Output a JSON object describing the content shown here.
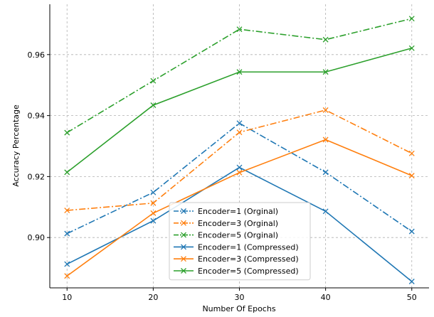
{
  "chart_data": {
    "type": "line",
    "title": "",
    "xlabel": "Number Of Epochs",
    "ylabel": "Accuracy Percentage",
    "x": [
      10,
      20,
      30,
      40,
      50
    ],
    "xticks": [
      "10",
      "20",
      "30",
      "40",
      "50"
    ],
    "yticks": [
      "0.90",
      "0.92",
      "0.94",
      "0.96"
    ],
    "xlim": [
      8,
      52
    ],
    "ylim": [
      0.8835,
      0.9765
    ],
    "grid": true,
    "legend_position": "lower-center",
    "series": [
      {
        "name": "Encoder=1 (Orginal)",
        "values": [
          0.9013,
          0.9148,
          0.9375,
          0.9214,
          0.902
        ],
        "color": "#1f77b4",
        "style": "dashdot",
        "marker": "x"
      },
      {
        "name": "Encoder=3 (Orginal)",
        "values": [
          0.9089,
          0.9113,
          0.9345,
          0.9418,
          0.9276
        ],
        "color": "#ff7f0e",
        "style": "dashdot",
        "marker": "x"
      },
      {
        "name": "Encoder=5 (Orginal)",
        "values": [
          0.9344,
          0.9514,
          0.9683,
          0.9649,
          0.9718
        ],
        "color": "#2ca02c",
        "style": "dashdot",
        "marker": "x"
      },
      {
        "name": "Encoder=1 (Compressed)",
        "values": [
          0.8913,
          0.9055,
          0.923,
          0.9086,
          0.8856
        ],
        "color": "#1f77b4",
        "style": "solid",
        "marker": "x"
      },
      {
        "name": "Encoder=3 (Compressed)",
        "values": [
          0.8874,
          0.908,
          0.9213,
          0.9321,
          0.9203
        ],
        "color": "#ff7f0e",
        "style": "solid",
        "marker": "x"
      },
      {
        "name": "Encoder=5 (Compressed)",
        "values": [
          0.9214,
          0.9434,
          0.9543,
          0.9543,
          0.9621
        ],
        "color": "#2ca02c",
        "style": "solid",
        "marker": "x"
      }
    ]
  }
}
